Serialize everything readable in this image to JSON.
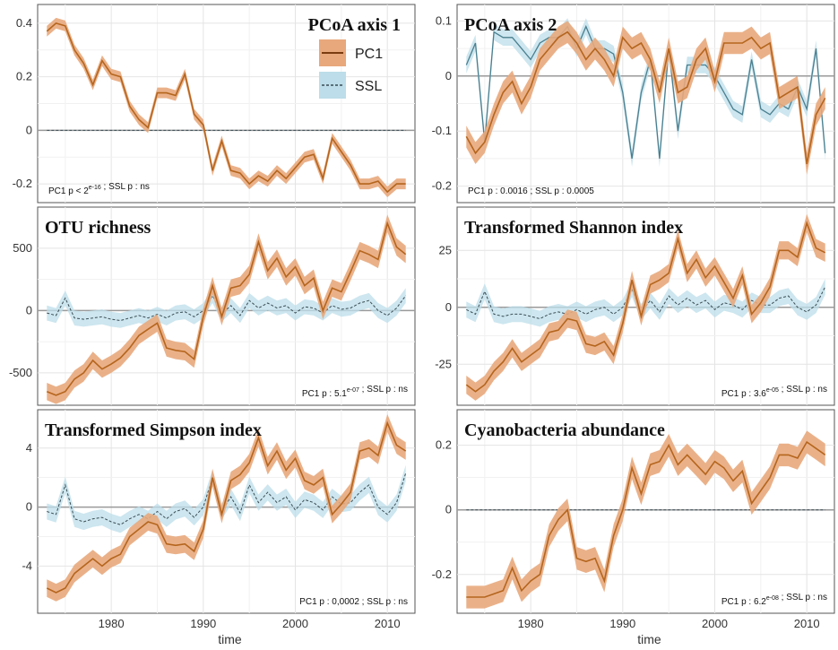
{
  "chart_data": {
    "type": "line",
    "xlabel": "time",
    "x_tick_labels": [
      "1980",
      "1990",
      "2000",
      "2010"
    ],
    "x_ticks": [
      1980,
      1990,
      2000,
      2010
    ],
    "xlim": [
      1972,
      2013
    ],
    "legend": {
      "position": "top-right",
      "entries": [
        {
          "name": "PC1",
          "color": "#b5651d",
          "fill": "#e8a87c",
          "style": "solid"
        },
        {
          "name": "SSL",
          "color": "#4a7f8f",
          "fill": "#bcdde9",
          "style": "dashed"
        }
      ]
    },
    "panels": [
      {
        "title": "PCoA axis 1",
        "ylim": [
          -0.27,
          0.47
        ],
        "yticks": [
          -0.2,
          0,
          0.2,
          0.4
        ],
        "ytick_labels": [
          "-0.2",
          "0",
          "0.2",
          "0.4"
        ],
        "annotation": "PC1 p < 2e-16 ; SSL p : ns",
        "x": [
          1973,
          1974,
          1975,
          1976,
          1977,
          1978,
          1979,
          1980,
          1981,
          1982,
          1983,
          1984,
          1985,
          1986,
          1987,
          1988,
          1989,
          1990,
          1991,
          1992,
          1993,
          1994,
          1995,
          1996,
          1997,
          1998,
          1999,
          2000,
          2001,
          2002,
          2003,
          2004,
          2005,
          2006,
          2007,
          2008,
          2009,
          2010,
          2011,
          2012
        ],
        "series": [
          {
            "name": "PC1",
            "style": "solid",
            "band": 0.02,
            "values": [
              0.37,
              0.4,
              0.39,
              0.3,
              0.25,
              0.17,
              0.26,
              0.21,
              0.2,
              0.09,
              0.04,
              0.01,
              0.14,
              0.14,
              0.13,
              0.21,
              0.06,
              0.02,
              -0.15,
              -0.04,
              -0.15,
              -0.16,
              -0.2,
              -0.17,
              -0.19,
              -0.15,
              -0.18,
              -0.14,
              -0.1,
              -0.09,
              -0.18,
              -0.03,
              -0.08,
              -0.13,
              -0.2,
              -0.2,
              -0.19,
              -0.23,
              -0.2,
              -0.2
            ]
          },
          {
            "name": "SSL",
            "style": "dashed",
            "band": 0.0,
            "values": [
              0,
              0,
              0,
              0,
              0,
              0,
              0,
              0,
              0,
              0,
              0,
              0,
              0,
              0,
              0,
              0,
              0,
              0,
              0,
              0,
              0,
              0,
              0,
              0,
              0,
              0,
              0,
              0,
              0,
              0,
              0,
              0,
              0,
              0,
              0,
              0,
              0,
              0,
              0,
              0
            ]
          }
        ]
      },
      {
        "title": "PCoA axis 2",
        "ylim": [
          -0.23,
          0.13
        ],
        "yticks": [
          -0.2,
          -0.1,
          0,
          0.1
        ],
        "ytick_labels": [
          "-0.2",
          "-0.1",
          "0",
          "0.1"
        ],
        "annotation": "PC1 p : 0.0016 ; SSL p : 0.0005",
        "x": [
          1973,
          1974,
          1975,
          1976,
          1977,
          1978,
          1979,
          1980,
          1981,
          1982,
          1983,
          1984,
          1985,
          1986,
          1987,
          1988,
          1989,
          1990,
          1991,
          1992,
          1993,
          1994,
          1995,
          1996,
          1997,
          1998,
          1999,
          2000,
          2001,
          2002,
          2003,
          2004,
          2005,
          2006,
          2007,
          2008,
          2009,
          2010,
          2011,
          2012
        ],
        "series": [
          {
            "name": "PC1",
            "style": "solid",
            "band": 0.02,
            "values": [
              -0.11,
              -0.14,
              -0.12,
              -0.07,
              -0.03,
              -0.01,
              -0.05,
              -0.02,
              0.03,
              0.05,
              0.07,
              0.08,
              0.06,
              0.03,
              0.05,
              0.03,
              0.0,
              0.07,
              0.05,
              0.06,
              0.03,
              -0.03,
              0.05,
              -0.03,
              -0.02,
              0.03,
              0.05,
              -0.01,
              0.06,
              0.06,
              0.06,
              0.07,
              0.05,
              0.06,
              -0.04,
              -0.03,
              -0.02,
              -0.16,
              -0.07,
              -0.04
            ]
          },
          {
            "name": "SSL",
            "style": "solid",
            "band": 0.015,
            "values": [
              0.02,
              0.06,
              -0.12,
              0.08,
              0.07,
              0.07,
              0.05,
              0.03,
              0.06,
              0.07,
              0.07,
              0.09,
              0.05,
              0.09,
              0.05,
              0.05,
              0.04,
              -0.03,
              -0.15,
              -0.03,
              0.03,
              -0.15,
              0.05,
              -0.1,
              0.02,
              0.02,
              0.02,
              0.0,
              -0.03,
              -0.06,
              -0.07,
              0.03,
              -0.06,
              -0.07,
              -0.05,
              -0.06,
              -0.02,
              -0.06,
              0.05,
              -0.14
            ]
          }
        ]
      },
      {
        "title": "OTU richness",
        "ylim": [
          -760,
          830
        ],
        "yticks": [
          -500,
          0,
          500
        ],
        "ytick_labels": [
          "-500",
          "0",
          "500"
        ],
        "annotation": "PC1 p : 5.1e-07 ; SSL p : ns",
        "x": [
          1973,
          1974,
          1975,
          1976,
          1977,
          1978,
          1979,
          1980,
          1981,
          1982,
          1983,
          1984,
          1985,
          1986,
          1987,
          1988,
          1989,
          1990,
          1991,
          1992,
          1993,
          1994,
          1995,
          1996,
          1997,
          1998,
          1999,
          2000,
          2001,
          2002,
          2003,
          2004,
          2005,
          2006,
          2007,
          2008,
          2009,
          2010,
          2011,
          2012
        ],
        "series": [
          {
            "name": "PC1",
            "style": "solid",
            "band": 70,
            "values": [
              -650,
              -680,
              -650,
              -550,
              -500,
              -400,
              -470,
              -430,
              -380,
              -300,
              -200,
              -150,
              -100,
              -300,
              -320,
              -330,
              -390,
              -50,
              200,
              -50,
              180,
              200,
              290,
              550,
              320,
              420,
              270,
              350,
              200,
              260,
              0,
              180,
              150,
              310,
              480,
              450,
              410,
              700,
              510,
              450
            ]
          },
          {
            "name": "SSL",
            "style": "dashed",
            "band": 60,
            "values": [
              -20,
              -40,
              100,
              -60,
              -70,
              -60,
              -50,
              -70,
              -80,
              -60,
              -40,
              -60,
              -30,
              -60,
              -20,
              -10,
              -50,
              0,
              120,
              -30,
              40,
              -40,
              80,
              20,
              60,
              20,
              40,
              -20,
              30,
              20,
              -20,
              40,
              10,
              20,
              60,
              80,
              0,
              -40,
              20,
              120
            ]
          }
        ]
      },
      {
        "title": "Transformed Shannon index",
        "ylim": [
          -43,
          44
        ],
        "yticks": [
          -25,
          0,
          25
        ],
        "ytick_labels": [
          "-25",
          "0",
          "25"
        ],
        "annotation": "PC1 p : 3.6e-05 ; SSL p : ns",
        "x": [
          1973,
          1974,
          1975,
          1976,
          1977,
          1978,
          1979,
          1980,
          1981,
          1982,
          1983,
          1984,
          1985,
          1986,
          1987,
          1988,
          1989,
          1990,
          1991,
          1992,
          1993,
          1994,
          1995,
          1996,
          1997,
          1998,
          1999,
          2000,
          2001,
          2002,
          2003,
          2004,
          2005,
          2006,
          2007,
          2008,
          2009,
          2010,
          2011,
          2012
        ],
        "series": [
          {
            "name": "PC1",
            "style": "solid",
            "band": 4,
            "values": [
              -34,
              -37,
              -34,
              -28,
              -24,
              -18,
              -24,
              -21,
              -18,
              -11,
              -10,
              -5,
              -6,
              -16,
              -17,
              -15,
              -21,
              -7,
              12,
              -4,
              10,
              12,
              15,
              30,
              15,
              21,
              13,
              18,
              11,
              4,
              14,
              -3,
              2,
              9,
              25,
              25,
              22,
              37,
              26,
              24
            ]
          },
          {
            "name": "SSL",
            "style": "dashed",
            "band": 3.5,
            "values": [
              -1,
              -3,
              7,
              -3,
              -4,
              -3,
              -3,
              -4,
              -5,
              -3,
              -2,
              -3,
              -1,
              -3,
              -1,
              0,
              -3,
              0,
              8,
              -2,
              3,
              -2,
              5,
              1,
              4,
              1,
              3,
              -1,
              2,
              1,
              -1,
              3,
              1,
              1,
              4,
              5,
              0,
              -2,
              1,
              9
            ]
          }
        ]
      },
      {
        "title": "Transformed Simpson index",
        "ylim": [
          -7.2,
          6.6
        ],
        "yticks": [
          -4,
          0,
          4
        ],
        "ytick_labels": [
          "-4",
          "0",
          "4"
        ],
        "annotation": "PC1 p : 0,0002 ; SSL p : ns",
        "x": [
          1973,
          1974,
          1975,
          1976,
          1977,
          1978,
          1979,
          1980,
          1981,
          1982,
          1983,
          1984,
          1985,
          1986,
          1987,
          1988,
          1989,
          1990,
          1991,
          1992,
          1993,
          1994,
          1995,
          1996,
          1997,
          1998,
          1999,
          2000,
          2001,
          2002,
          2003,
          2004,
          2005,
          2006,
          2007,
          2008,
          2009,
          2010,
          2011,
          2012
        ],
        "series": [
          {
            "name": "PC1",
            "style": "solid",
            "band": 0.6,
            "values": [
              -5.5,
              -5.8,
              -5.5,
              -4.5,
              -4.0,
              -3.5,
              -4.0,
              -3.5,
              -3.2,
              -2.0,
              -1.5,
              -1.0,
              -1.2,
              -2.5,
              -2.6,
              -2.5,
              -3.0,
              -1.5,
              2.0,
              -0.5,
              1.8,
              2.2,
              3.0,
              4.7,
              2.8,
              3.8,
              2.5,
              3.3,
              1.8,
              1.5,
              2.0,
              -0.5,
              0.2,
              1.0,
              3.8,
              4.0,
              3.5,
              5.7,
              4.2,
              3.8
            ]
          },
          {
            "name": "SSL",
            "style": "dashed",
            "band": 0.55,
            "values": [
              -0.3,
              -0.5,
              1.5,
              -0.8,
              -1.0,
              -0.8,
              -0.7,
              -1.0,
              -1.2,
              -0.8,
              -0.5,
              -0.8,
              -0.3,
              -0.8,
              -0.3,
              -0.1,
              -0.7,
              0.0,
              2.0,
              -0.3,
              0.7,
              -0.4,
              1.5,
              0.3,
              1.0,
              0.3,
              0.7,
              -0.2,
              0.5,
              0.3,
              -0.2,
              0.7,
              0.2,
              0.3,
              1.0,
              1.5,
              0.0,
              -0.5,
              0.3,
              2.3
            ]
          }
        ]
      },
      {
        "title": "Cyanobacteria abundance",
        "ylim": [
          -0.32,
          0.31
        ],
        "yticks": [
          -0.2,
          0,
          0.2
        ],
        "ytick_labels": [
          "-0.2",
          "0",
          "0.2"
        ],
        "annotation": "PC1 p : 6.2e-08 ; SSL p : ns",
        "x": [
          1973,
          1974,
          1975,
          1976,
          1977,
          1978,
          1979,
          1980,
          1981,
          1982,
          1983,
          1984,
          1985,
          1986,
          1987,
          1988,
          1989,
          1990,
          1991,
          1992,
          1993,
          1994,
          1995,
          1996,
          1997,
          1998,
          1999,
          2000,
          2001,
          2002,
          2003,
          2004,
          2005,
          2006,
          2007,
          2008,
          2009,
          2010,
          2011,
          2012
        ],
        "series": [
          {
            "name": "PC1",
            "style": "solid",
            "band": 0.035,
            "values": [
              -0.27,
              -0.27,
              -0.27,
              -0.26,
              -0.25,
              -0.18,
              -0.25,
              -0.22,
              -0.2,
              -0.08,
              -0.03,
              0.0,
              -0.15,
              -0.16,
              -0.15,
              -0.22,
              -0.08,
              0.0,
              0.13,
              0.05,
              0.14,
              0.15,
              0.2,
              0.14,
              0.17,
              0.14,
              0.11,
              0.15,
              0.13,
              0.09,
              0.12,
              0.02,
              0.06,
              0.1,
              0.17,
              0.17,
              0.16,
              0.21,
              0.19,
              0.17
            ]
          },
          {
            "name": "SSL",
            "style": "dashed",
            "band": 0.0,
            "values": [
              0,
              0,
              0,
              0,
              0,
              0,
              0,
              0,
              0,
              0,
              0,
              0,
              0,
              0,
              0,
              0,
              0,
              0,
              0,
              0,
              0,
              0,
              0,
              0,
              0,
              0,
              0,
              0,
              0,
              0,
              0,
              0,
              0,
              0,
              0,
              0,
              0,
              0,
              0,
              0
            ]
          }
        ]
      }
    ]
  }
}
